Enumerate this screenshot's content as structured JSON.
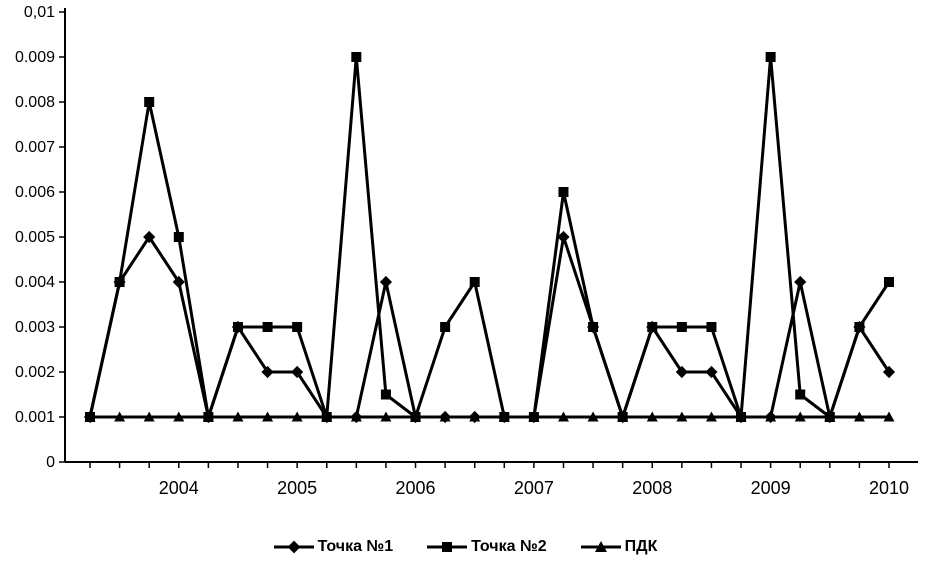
{
  "chart_data": {
    "type": "line",
    "title": "",
    "xlabel": "",
    "ylabel": "",
    "ylim": [
      0,
      0.01
    ],
    "grid": false,
    "legend_position": "bottom",
    "line_color": "#000000",
    "background_color": "#ffffff",
    "n_points": 28,
    "y_tick_values": [
      0,
      0.001,
      0.002,
      0.003,
      0.004,
      0.005,
      0.006,
      0.007,
      0.008,
      0.009,
      0.01
    ],
    "y_tick_labels": [
      "0",
      "0.001",
      "0.002",
      "0.003",
      "0.004",
      "0.005",
      "0.006",
      "0.007",
      "0.008",
      "0.009",
      "0,01"
    ],
    "x_tick_labels": [
      "2004",
      "2005",
      "2006",
      "2007",
      "2008",
      "2009",
      "2010"
    ],
    "x_tick_label_indices": [
      3,
      7,
      11,
      15,
      19,
      23,
      27
    ],
    "series": [
      {
        "name": "Точка №1",
        "marker": "diamond",
        "values": [
          0.001,
          0.004,
          0.005,
          0.004,
          0.001,
          0.003,
          0.002,
          0.002,
          0.001,
          0.001,
          0.004,
          0.001,
          0.001,
          0.001,
          0.001,
          0.001,
          0.005,
          0.003,
          0.001,
          0.003,
          0.002,
          0.002,
          0.001,
          0.001,
          0.004,
          0.001,
          0.003,
          0.002
        ]
      },
      {
        "name": "Точка №2",
        "marker": "square",
        "values": [
          0.001,
          0.004,
          0.008,
          0.005,
          0.001,
          0.003,
          0.003,
          0.003,
          0.001,
          0.009,
          0.0015,
          0.001,
          0.003,
          0.004,
          0.001,
          0.001,
          0.006,
          0.003,
          0.001,
          0.003,
          0.003,
          0.003,
          0.001,
          0.009,
          0.0015,
          0.001,
          0.003,
          0.004
        ]
      },
      {
        "name": "ПДК",
        "marker": "triangle",
        "values": [
          0.001,
          0.001,
          0.001,
          0.001,
          0.001,
          0.001,
          0.001,
          0.001,
          0.001,
          0.001,
          0.001,
          0.001,
          0.001,
          0.001,
          0.001,
          0.001,
          0.001,
          0.001,
          0.001,
          0.001,
          0.001,
          0.001,
          0.001,
          0.001,
          0.001,
          0.001,
          0.001,
          0.001
        ]
      }
    ]
  }
}
